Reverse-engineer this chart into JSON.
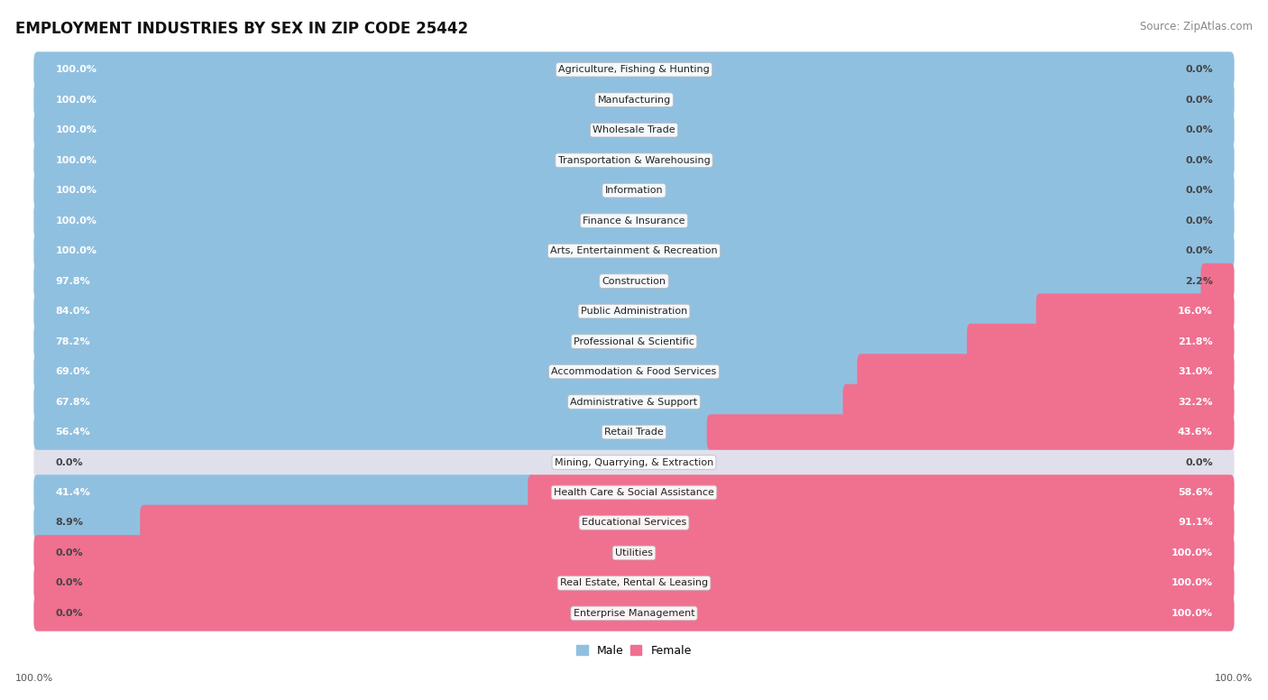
{
  "title": "EMPLOYMENT INDUSTRIES BY SEX IN ZIP CODE 25442",
  "source": "Source: ZipAtlas.com",
  "industries": [
    "Agriculture, Fishing & Hunting",
    "Manufacturing",
    "Wholesale Trade",
    "Transportation & Warehousing",
    "Information",
    "Finance & Insurance",
    "Arts, Entertainment & Recreation",
    "Construction",
    "Public Administration",
    "Professional & Scientific",
    "Accommodation & Food Services",
    "Administrative & Support",
    "Retail Trade",
    "Mining, Quarrying, & Extraction",
    "Health Care & Social Assistance",
    "Educational Services",
    "Utilities",
    "Real Estate, Rental & Leasing",
    "Enterprise Management"
  ],
  "male_pct": [
    100.0,
    100.0,
    100.0,
    100.0,
    100.0,
    100.0,
    100.0,
    97.8,
    84.0,
    78.2,
    69.0,
    67.8,
    56.4,
    0.0,
    41.4,
    8.9,
    0.0,
    0.0,
    0.0
  ],
  "female_pct": [
    0.0,
    0.0,
    0.0,
    0.0,
    0.0,
    0.0,
    0.0,
    2.2,
    16.0,
    21.8,
    31.0,
    32.2,
    43.6,
    0.0,
    58.6,
    91.1,
    100.0,
    100.0,
    100.0
  ],
  "male_color": "#90c0e0",
  "female_color": "#f07090",
  "bar_bg_color": "#e0e0ec",
  "row_even_color": "#f0f0f8",
  "row_odd_color": "#fafafa",
  "fig_bg_color": "#ffffff",
  "title_fontsize": 12,
  "source_fontsize": 8.5,
  "pct_fontsize": 8,
  "industry_fontsize": 8,
  "legend_male_color": "#90c0e0",
  "legend_female_color": "#f07090"
}
